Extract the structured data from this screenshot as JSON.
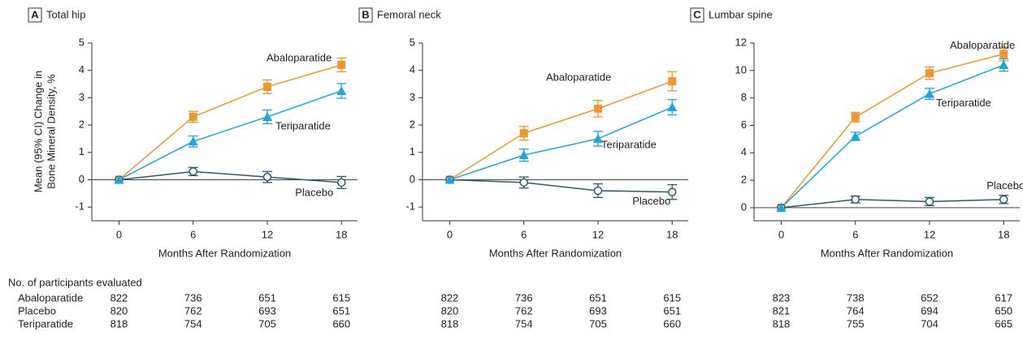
{
  "chart_data": [
    {
      "type": "line",
      "panel_letter": "A",
      "title": "Total hip",
      "y_label": [
        "Mean (95% CI) Change in",
        "Bone Mineral Density, %"
      ],
      "x_label": "Months After Randomization",
      "x": [
        0,
        6,
        12,
        18
      ],
      "xlim": [
        -2.2,
        19.3
      ],
      "xticks": [
        0,
        6,
        12,
        18
      ],
      "ylim": [
        -1.5,
        5
      ],
      "yticks": [
        -1,
        0,
        1,
        2,
        3,
        4,
        5
      ],
      "series": [
        {
          "name": "Abaloparatide",
          "color": "#f0962e",
          "marker": "square",
          "values": [
            0,
            2.3,
            3.4,
            4.2
          ],
          "errors": [
            null,
            0.2,
            0.25,
            0.25
          ]
        },
        {
          "name": "Placebo",
          "color": "#2b5a6b",
          "marker": "circle-open",
          "values": [
            0,
            0.3,
            0.1,
            -0.1
          ],
          "errors": [
            null,
            0.15,
            0.2,
            0.22
          ]
        },
        {
          "name": "Teriparatide",
          "color": "#1ea5dc",
          "marker": "triangle",
          "values": [
            0,
            1.4,
            2.3,
            3.25
          ],
          "errors": [
            null,
            0.2,
            0.25,
            0.27
          ]
        }
      ],
      "participants": [
        [
          822,
          736,
          651,
          615
        ],
        [
          820,
          762,
          693,
          651
        ],
        [
          818,
          754,
          705,
          660
        ]
      ]
    },
    {
      "type": "line",
      "panel_letter": "B",
      "title": "Femoral neck",
      "x_label": "Months After Randomization",
      "x": [
        0,
        6,
        12,
        18
      ],
      "xlim": [
        -2.2,
        19.3
      ],
      "xticks": [
        0,
        6,
        12,
        18
      ],
      "ylim": [
        -1.5,
        5
      ],
      "yticks": [
        -1,
        0,
        1,
        2,
        3,
        4,
        5
      ],
      "series": [
        {
          "name": "Abaloparatide",
          "color": "#f0962e",
          "marker": "square",
          "values": [
            0,
            1.7,
            2.6,
            3.6
          ],
          "errors": [
            null,
            0.25,
            0.3,
            0.35
          ]
        },
        {
          "name": "Placebo",
          "color": "#2b5a6b",
          "marker": "circle-open",
          "values": [
            0,
            -0.1,
            -0.4,
            -0.45
          ],
          "errors": [
            null,
            0.2,
            0.25,
            0.27
          ]
        },
        {
          "name": "Teriparatide",
          "color": "#1ea5dc",
          "marker": "triangle",
          "values": [
            0,
            0.9,
            1.5,
            2.65
          ],
          "errors": [
            null,
            0.22,
            0.27,
            0.28
          ]
        }
      ],
      "participants": [
        [
          822,
          736,
          651,
          615
        ],
        [
          820,
          762,
          693,
          651
        ],
        [
          818,
          754,
          705,
          660
        ]
      ]
    },
    {
      "type": "line",
      "panel_letter": "C",
      "title": "Lumbar spine",
      "x_label": "Months After Randomization",
      "x": [
        0,
        6,
        12,
        18
      ],
      "xlim": [
        -2.2,
        19.3
      ],
      "xticks": [
        0,
        6,
        12,
        18
      ],
      "ylim": [
        -0.95,
        12
      ],
      "yticks": [
        0,
        2,
        4,
        6,
        8,
        10,
        12
      ],
      "series": [
        {
          "name": "Abaloparatide",
          "color": "#f0962e",
          "marker": "square",
          "values": [
            0,
            6.6,
            9.8,
            11.2
          ],
          "errors": [
            null,
            0.35,
            0.45,
            0.5
          ]
        },
        {
          "name": "Placebo",
          "color": "#2b5a6b",
          "marker": "circle-open",
          "values": [
            0,
            0.6,
            0.45,
            0.6
          ],
          "errors": [
            null,
            0.25,
            0.3,
            0.3
          ]
        },
        {
          "name": "Teriparatide",
          "color": "#1ea5dc",
          "marker": "triangle",
          "values": [
            0,
            5.2,
            8.3,
            10.4
          ],
          "errors": [
            null,
            0.3,
            0.4,
            0.45
          ]
        }
      ],
      "participants": [
        [
          823,
          738,
          652,
          617
        ],
        [
          821,
          764,
          694,
          650
        ],
        [
          818,
          755,
          704,
          665
        ]
      ]
    }
  ],
  "participants_title": "No. of participants evaluated"
}
